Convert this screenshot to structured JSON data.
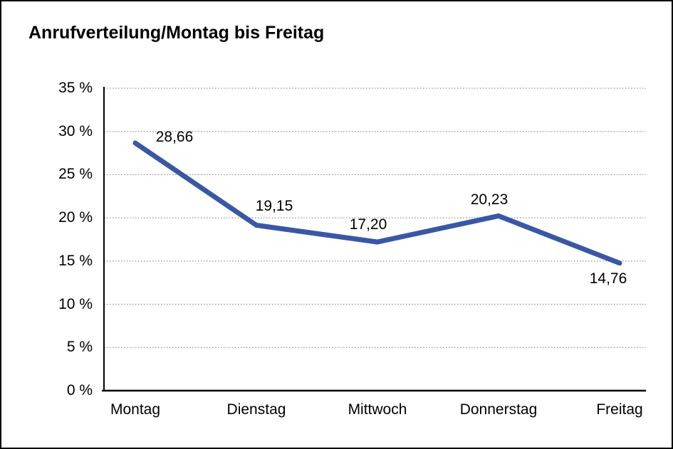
{
  "page": {
    "background": "#ffffff",
    "frame_border_color": "#000000"
  },
  "title": "Anrufverteilung/Montag bis Freitag",
  "chart_data": {
    "type": "line",
    "title": "Anrufverteilung/Montag bis Freitag",
    "categories": [
      "Montag",
      "Dienstag",
      "Mittwoch",
      "Donnerstag",
      "Freitag"
    ],
    "values": [
      28.66,
      19.15,
      17.2,
      20.23,
      14.76
    ],
    "point_labels": [
      "28,66",
      "19,15",
      "17,20",
      "20,23",
      "14,76"
    ],
    "series_name": "Anrufverteilung",
    "xlabel": "",
    "ylabel": "",
    "ylim": [
      0,
      35
    ],
    "y_tick_step": 5,
    "y_tick_values": [
      0,
      5,
      10,
      15,
      20,
      25,
      30,
      35
    ],
    "y_tick_labels": [
      "0 %",
      "5 %",
      "10 %",
      "15 %",
      "20 %",
      "25 %",
      "30 %",
      "35 %"
    ],
    "grid": "horizontal-dotted",
    "legend_position": "none",
    "line_color": "#3A57A5",
    "gridline_color": "#777777",
    "axis_color": "#000000",
    "label_color": "#000000"
  }
}
